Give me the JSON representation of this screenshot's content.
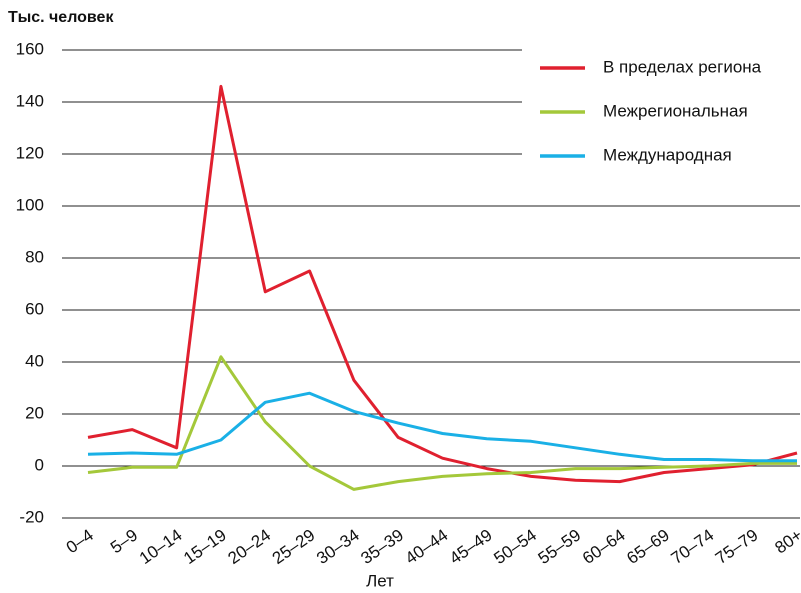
{
  "chart_data": {
    "type": "line",
    "y_axis_label": "Тыс. человек",
    "x_axis_label": "Лет",
    "categories": [
      "0–4",
      "5–9",
      "10–14",
      "15–19",
      "20–24",
      "25–29",
      "30–34",
      "35–39",
      "40–44",
      "45–49",
      "50–54",
      "55–59",
      "60–64",
      "65–69",
      "70–74",
      "75–79",
      "80+"
    ],
    "series": [
      {
        "name": "В пределах региона",
        "color": "#e0202f",
        "values": [
          11,
          14,
          7,
          146,
          67,
          75,
          33,
          11,
          3,
          -1,
          -4,
          -5.5,
          -6,
          -2.5,
          -1,
          0.5,
          5
        ]
      },
      {
        "name": "Межрегиональная",
        "color": "#a4c83a",
        "values": [
          -2.5,
          -0.5,
          -0.5,
          42,
          17,
          0,
          -9,
          -6,
          -4,
          -3,
          -2.5,
          -1,
          -1,
          -0.5,
          0,
          1,
          1
        ]
      },
      {
        "name": "Международная",
        "color": "#1ab0e6",
        "values": [
          4.5,
          5,
          4.5,
          10,
          24.5,
          28,
          21,
          16.5,
          12.5,
          10.5,
          9.5,
          7,
          4.5,
          2.5,
          2.5,
          2,
          2
        ]
      }
    ],
    "ylim": [
      -20,
      160
    ],
    "yticks": [
      -20,
      0,
      20,
      40,
      60,
      80,
      100,
      120,
      140,
      160
    ],
    "grid": true,
    "legend": "top-right"
  }
}
